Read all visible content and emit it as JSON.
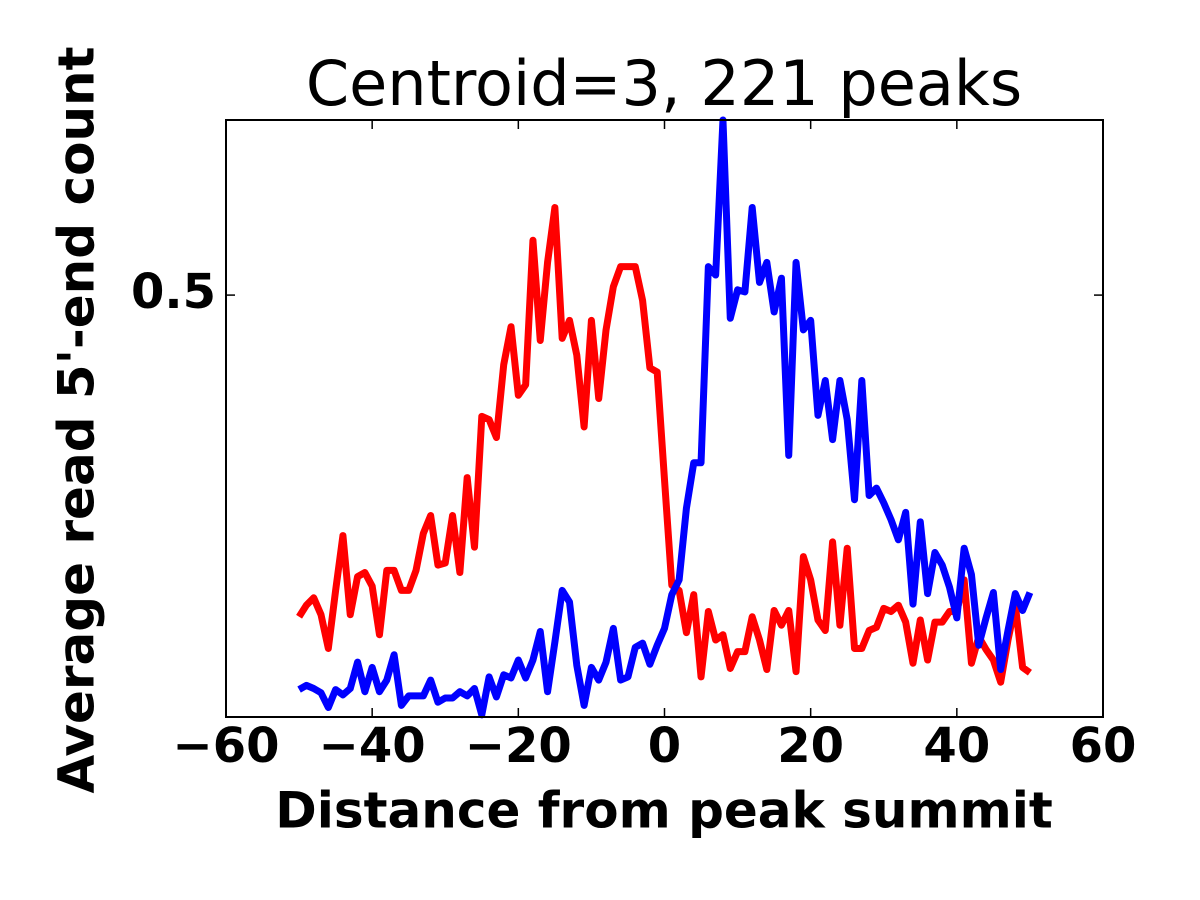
{
  "chart_data": {
    "type": "line",
    "title": "Centroid=3, 221 peaks",
    "xlabel": "Distance from peak summit",
    "ylabel": "Average read 5'-end count",
    "x": [
      -50,
      -49,
      -48,
      -47,
      -46,
      -45,
      -44,
      -43,
      -42,
      -41,
      -40,
      -39,
      -38,
      -37,
      -36,
      -35,
      -34,
      -33,
      -32,
      -31,
      -30,
      -29,
      -28,
      -27,
      -26,
      -25,
      -24,
      -23,
      -22,
      -21,
      -20,
      -19,
      -18,
      -17,
      -16,
      -15,
      -14,
      -13,
      -12,
      -11,
      -10,
      -9,
      -8,
      -7,
      -6,
      -5,
      -4,
      -3,
      -2,
      -1,
      0,
      1,
      2,
      3,
      4,
      5,
      6,
      7,
      8,
      9,
      10,
      11,
      12,
      13,
      14,
      15,
      16,
      17,
      18,
      19,
      20,
      21,
      22,
      23,
      24,
      25,
      26,
      27,
      28,
      29,
      30,
      31,
      32,
      33,
      34,
      35,
      36,
      37,
      38,
      39,
      40,
      41,
      42,
      43,
      44,
      45,
      46,
      47,
      48,
      49,
      50
    ],
    "series": [
      {
        "color": "#ff0000",
        "values": [
          0.195,
          0.206,
          0.213,
          0.197,
          0.165,
          0.22,
          0.272,
          0.197,
          0.233,
          0.237,
          0.224,
          0.178,
          0.239,
          0.239,
          0.22,
          0.22,
          0.239,
          0.274,
          0.291,
          0.244,
          0.246,
          0.291,
          0.237,
          0.327,
          0.261,
          0.385,
          0.382,
          0.365,
          0.434,
          0.47,
          0.405,
          0.415,
          0.552,
          0.457,
          0.531,
          0.583,
          0.459,
          0.476,
          0.443,
          0.375,
          0.476,
          0.402,
          0.467,
          0.508,
          0.527,
          0.527,
          0.527,
          0.495,
          0.431,
          0.427,
          0.325,
          0.225,
          0.22,
          0.18,
          0.216,
          0.138,
          0.2,
          0.173,
          0.178,
          0.146,
          0.162,
          0.162,
          0.195,
          0.173,
          0.145,
          0.201,
          0.187,
          0.201,
          0.143,
          0.252,
          0.23,
          0.192,
          0.182,
          0.266,
          0.187,
          0.26,
          0.165,
          0.165,
          0.182,
          0.185,
          0.203,
          0.2,
          0.206,
          0.19,
          0.151,
          0.192,
          0.154,
          0.19,
          0.19,
          0.2,
          0.2,
          0.23,
          0.151,
          0.176,
          0.164,
          0.154,
          0.133,
          0.173,
          0.206,
          0.147,
          0.142
        ]
      },
      {
        "color": "#0000ff",
        "values": [
          0.126,
          0.13,
          0.127,
          0.123,
          0.109,
          0.126,
          0.121,
          0.127,
          0.152,
          0.124,
          0.147,
          0.124,
          0.135,
          0.159,
          0.111,
          0.12,
          0.12,
          0.12,
          0.135,
          0.114,
          0.118,
          0.118,
          0.124,
          0.12,
          0.127,
          0.102,
          0.138,
          0.119,
          0.14,
          0.137,
          0.154,
          0.137,
          0.154,
          0.181,
          0.124,
          0.171,
          0.22,
          0.209,
          0.149,
          0.111,
          0.147,
          0.135,
          0.152,
          0.184,
          0.135,
          0.138,
          0.166,
          0.17,
          0.15,
          0.168,
          0.184,
          0.216,
          0.23,
          0.298,
          0.341,
          0.341,
          0.527,
          0.519,
          0.666,
          0.478,
          0.505,
          0.503,
          0.583,
          0.512,
          0.531,
          0.484,
          0.516,
          0.348,
          0.531,
          0.467,
          0.476,
          0.386,
          0.419,
          0.363,
          0.419,
          0.382,
          0.306,
          0.419,
          0.31,
          0.317,
          0.303,
          0.287,
          0.268,
          0.294,
          0.207,
          0.285,
          0.217,
          0.256,
          0.244,
          0.223,
          0.194,
          0.26,
          0.235,
          0.168,
          0.194,
          0.218,
          0.145,
          0.182,
          0.217,
          0.201,
          0.218
        ]
      }
    ],
    "xlim": [
      -60,
      60
    ],
    "xticks": [
      {
        "value": -60,
        "label": "−60"
      },
      {
        "value": -40,
        "label": "−40"
      },
      {
        "value": -20,
        "label": "−20"
      },
      0,
      20,
      40,
      60
    ],
    "ylim": [
      0.1,
      0.666
    ],
    "yticks": [
      0.5
    ]
  }
}
